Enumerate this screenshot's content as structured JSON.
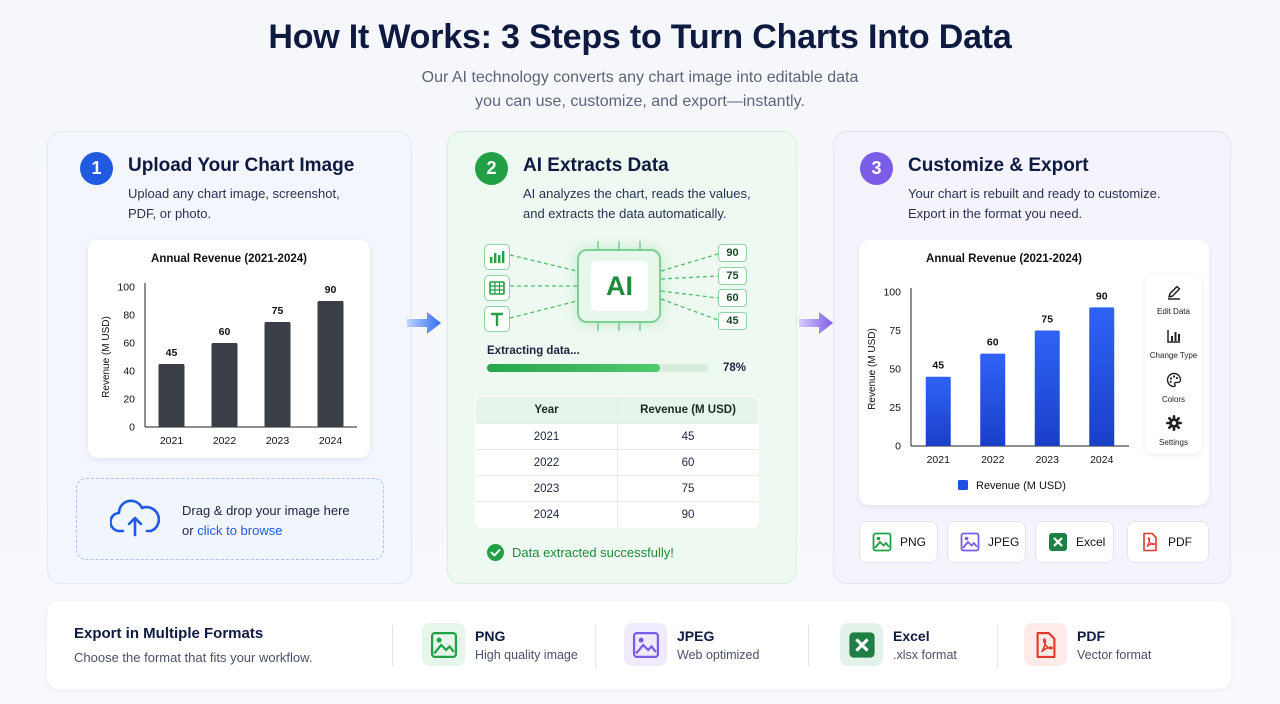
{
  "header": {
    "title": "How It Works: 3 Steps to Turn Charts Into Data",
    "subtitle_line1": "Our AI technology converts any chart image into editable data",
    "subtitle_line2": "you can use, customize, and export—instantly."
  },
  "step1": {
    "number": "1",
    "title": "Upload Your Chart Image",
    "desc_line1": "Upload any chart image, screenshot,",
    "desc_line2": "PDF, or photo.",
    "dropzone_line1": "Drag & drop your image here",
    "dropzone_or": "or",
    "dropzone_link": "click to browse"
  },
  "step2": {
    "number": "2",
    "title": "AI Extracts Data",
    "desc_line1": "AI analyzes the chart, reads the values,",
    "desc_line2": "and extracts the data automatically.",
    "ai_label": "AI",
    "values": [
      "90",
      "75",
      "60",
      "45"
    ],
    "progress_label": "Extracting data...",
    "progress_percent": 78,
    "progress_text": "78%",
    "table_headers": [
      "Year",
      "Revenue (M USD)"
    ],
    "table_rows": [
      [
        "2021",
        "45"
      ],
      [
        "2022",
        "60"
      ],
      [
        "2023",
        "75"
      ],
      [
        "2024",
        "90"
      ]
    ],
    "success_text": "Data extracted successfully!"
  },
  "step3": {
    "number": "3",
    "title": "Customize & Export",
    "desc_line1": "Your chart is rebuilt and ready to customize.",
    "desc_line2": "Export in the format you need.",
    "tools": [
      "Edit Data",
      "Change Type",
      "Colors",
      "Settings"
    ],
    "formats": [
      "PNG",
      "JPEG",
      "Excel",
      "PDF"
    ]
  },
  "footer": {
    "title": "Export in Multiple Formats",
    "subtitle": "Choose the format that fits your workflow.",
    "items": [
      {
        "name": "PNG",
        "desc": "High quality image"
      },
      {
        "name": "JPEG",
        "desc": "Web optimized"
      },
      {
        "name": "Excel",
        "desc": ".xlsx format"
      },
      {
        "name": "PDF",
        "desc": "Vector format"
      }
    ]
  },
  "colors": {
    "step1_accent": "#1f5ae0",
    "step2_accent": "#22a045",
    "step3_accent": "#7b5ce6",
    "dark_bar": "#3a3f47",
    "blue_bar": "#1f4fe0"
  },
  "chart_data": [
    {
      "type": "bar",
      "title": "Annual Revenue (2021-2024)",
      "categories": [
        "2021",
        "2022",
        "2023",
        "2024"
      ],
      "values": [
        45,
        60,
        75,
        90
      ],
      "ylabel": "Revenue (M USD)",
      "ylim": [
        0,
        100
      ],
      "yticks": [
        0,
        20,
        40,
        60,
        80,
        100
      ],
      "color": "#3a3f47"
    },
    {
      "type": "bar",
      "title": "Annual Revenue (2021-2024)",
      "categories": [
        "2021",
        "2022",
        "2023",
        "2024"
      ],
      "values": [
        45,
        60,
        75,
        90
      ],
      "ylabel": "Revenue (M USD)",
      "ylim": [
        0,
        100
      ],
      "yticks": [
        0,
        25,
        50,
        75,
        100
      ],
      "legend": "Revenue (M USD)",
      "legend_position": "bottom",
      "color": "#1f4fe0"
    }
  ]
}
